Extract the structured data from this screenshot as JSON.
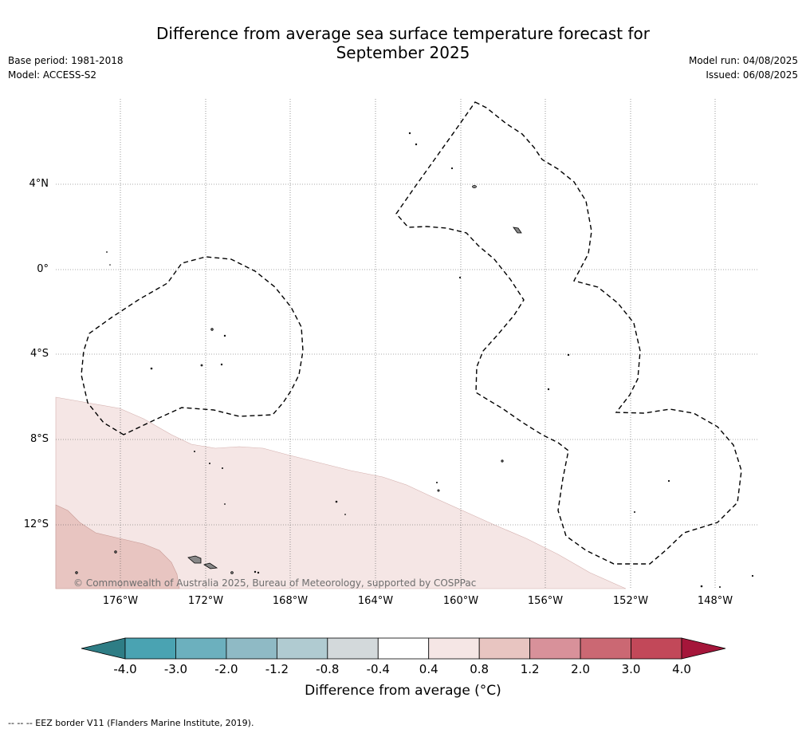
{
  "title_line1": "Difference from average sea surface temperature forecast for",
  "title_line2": "September 2025",
  "base_period": "Base period: 1981-2018",
  "model": "Model: ACCESS-S2",
  "model_run": "Model run: 04/08/2025",
  "issued": "Issued: 06/08/2025",
  "lat_labels": [
    "4°N",
    "0°",
    "4°S",
    "8°S",
    "12°S"
  ],
  "lon_labels": [
    "176°W",
    "172°W",
    "168°W",
    "164°W",
    "160°W",
    "156°W",
    "152°W",
    "148°W"
  ],
  "copyright": "© Commonwealth of Australia 2025, Bureau of Meteorology, supported by COSPPac",
  "colorbar": {
    "ticks": [
      "-4.0",
      "-3.0",
      "-2.0",
      "-1.2",
      "-0.8",
      "-0.4",
      "0.4",
      "0.8",
      "1.2",
      "2.0",
      "3.0",
      "4.0"
    ],
    "colors": [
      "#2e7d85",
      "#4aa3b2",
      "#6cb0be",
      "#8fbac5",
      "#b0cbd1",
      "#d3d9db",
      "#ffffff",
      "#f5e6e5",
      "#e8c5c1",
      "#d8919a",
      "#cb6873",
      "#c24859",
      "#a5163a"
    ],
    "label": "Difference from average (°C)"
  },
  "legend_eez": "--  --  -- EEZ border V11 (Flanders Marine Institute, 2019)."
}
